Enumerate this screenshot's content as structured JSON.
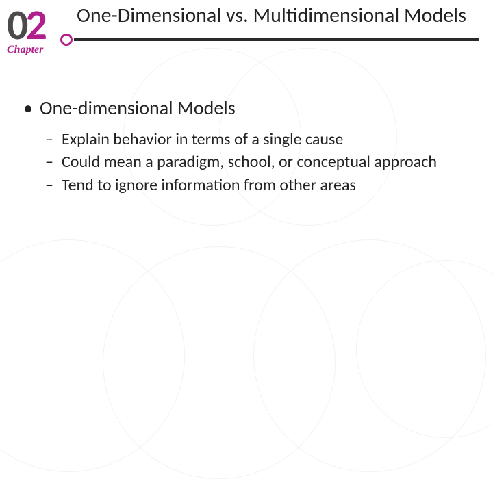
{
  "chapter": {
    "digit0": "0",
    "digit1": "2",
    "label": "Chapter"
  },
  "header": {
    "title": "One-Dimensional vs. Multidimensional Models"
  },
  "body": {
    "bullet1": "One-dimensional Models",
    "sub1": "Explain behavior in terms of a single cause",
    "sub2": "Could mean a paradigm, school, or conceptual approach",
    "sub3": "Tend to ignore information from other areas"
  },
  "style": {
    "accent_color": "#b01f8a",
    "text_color": "#222222",
    "divider_color": "#2a2a2a",
    "background_color": "#ffffff",
    "title_fontsize": 30,
    "lvl1_fontsize": 28,
    "lvl2_fontsize": 24
  }
}
